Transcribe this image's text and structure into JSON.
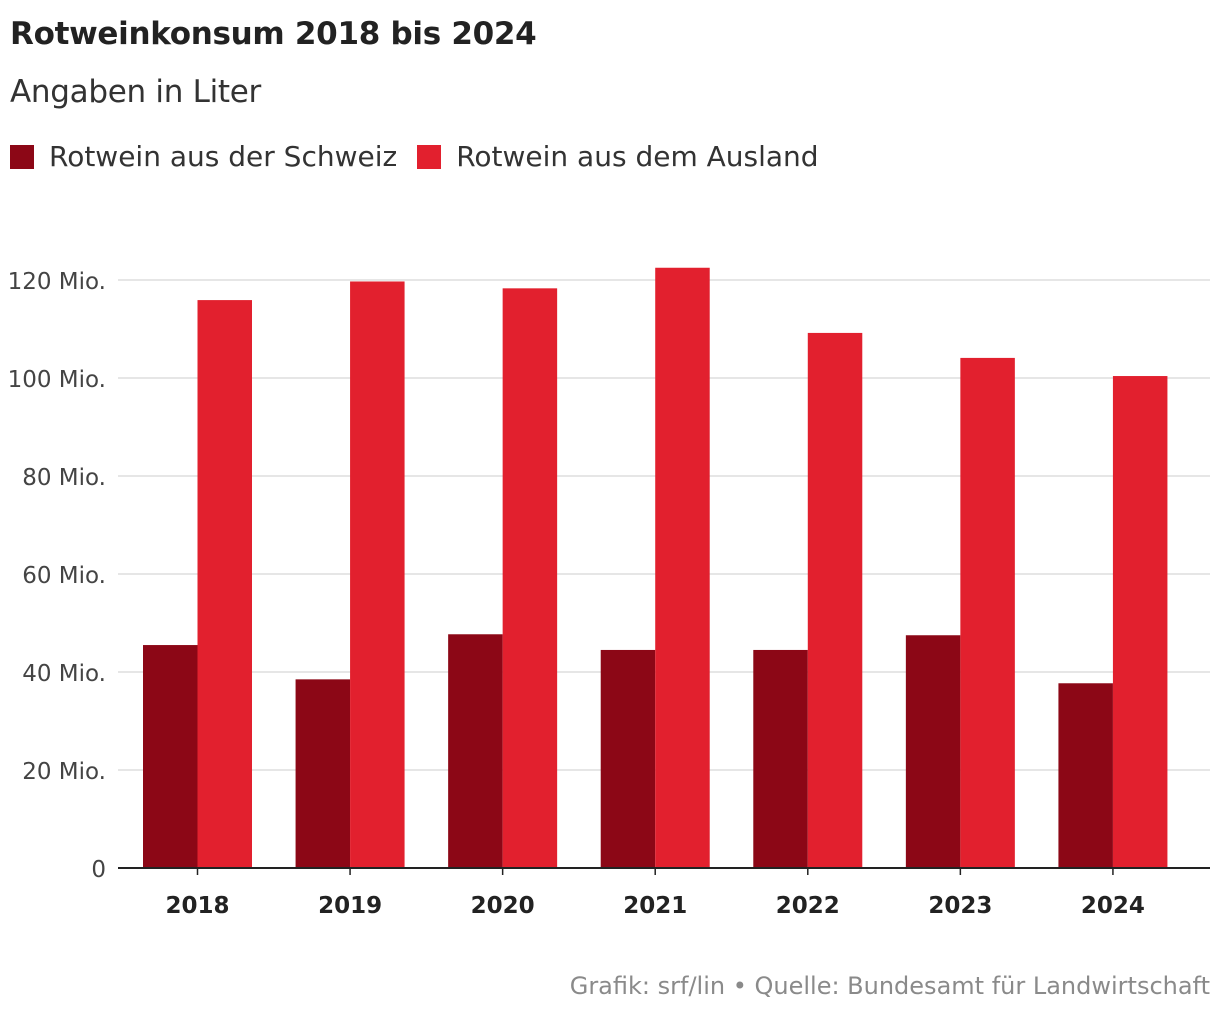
{
  "title": "Rotweinkonsum 2018 bis 2024",
  "subtitle": "Angaben in Liter",
  "footer": "Grafik: srf/lin • Quelle: Bundesamt für Landwirtschaft",
  "colors": {
    "schweiz": "#8c0716",
    "ausland": "#e2202e",
    "grid": "#dedede",
    "axis": "#222222"
  },
  "chart_data": {
    "type": "bar",
    "categories": [
      "2018",
      "2019",
      "2020",
      "2021",
      "2022",
      "2023",
      "2024"
    ],
    "series": [
      {
        "name": "Rotwein aus der Schweiz",
        "color": "#8c0716",
        "values": [
          45.5,
          38.5,
          47.7,
          44.5,
          44.5,
          47.5,
          37.7
        ]
      },
      {
        "name": "Rotwein aus dem Ausland",
        "color": "#e2202e",
        "values": [
          115.9,
          119.7,
          118.3,
          122.5,
          109.2,
          104.1,
          100.4
        ]
      }
    ],
    "yticks": [
      0,
      20,
      40,
      60,
      80,
      100,
      120
    ],
    "ytick_labels": [
      "0",
      "20 Mio.",
      "40 Mio.",
      "60 Mio.",
      "80 Mio.",
      "100 Mio.",
      "120 Mio."
    ],
    "ylim": [
      0,
      125
    ],
    "grid": true,
    "legend": "top-left"
  }
}
